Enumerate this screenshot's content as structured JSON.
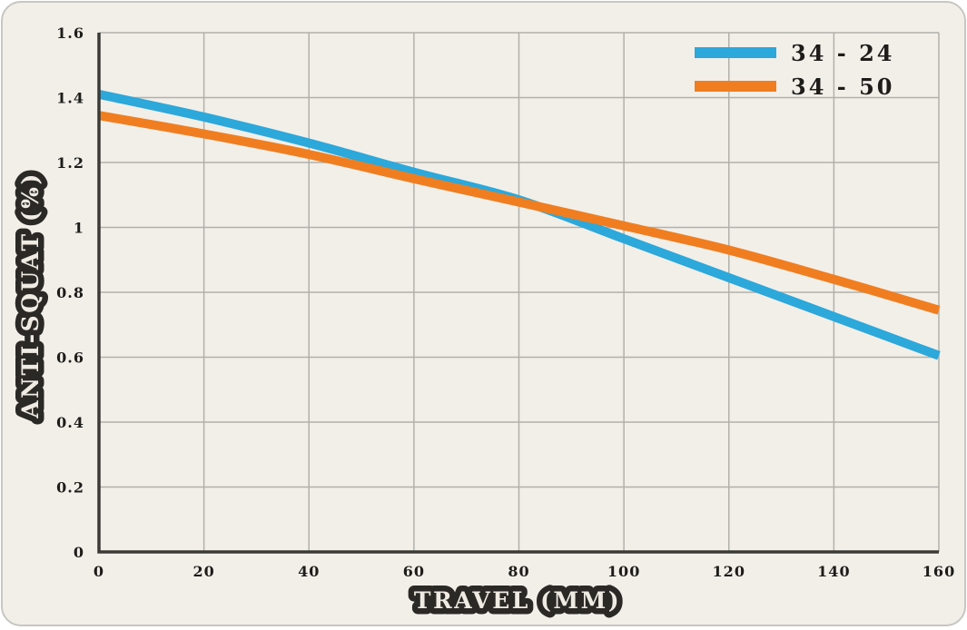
{
  "chart": {
    "colors": {
      "background": "#f2efe9",
      "outer_background": "#ffffff",
      "card_border": "#c8c6c1",
      "grid": "#b2b0ab",
      "axis": "#3b3a36",
      "tick_text": "#1d1c19",
      "title_fill": "#efebe3",
      "title_outline": "#2a2925"
    },
    "chart_data": {
      "type": "line",
      "title": "",
      "xlabel": "TRAVEL (MM)",
      "ylabel": "ANTI-SQUAT (%)",
      "xlim": [
        0,
        160
      ],
      "ylim": [
        0,
        1.6
      ],
      "grid": true,
      "legend_position": "top-right",
      "x_ticks": [
        0,
        20,
        40,
        60,
        80,
        100,
        120,
        140,
        160
      ],
      "x_tick_labels": [
        "0",
        "20",
        "40",
        "60",
        "80",
        "100",
        "120",
        "140",
        "160"
      ],
      "y_ticks": [
        0,
        0.2,
        0.4,
        0.6,
        0.8,
        1,
        1.2,
        1.4,
        1.6
      ],
      "y_tick_labels": [
        "0",
        "0.2",
        "0.4",
        "0.6",
        "0.8",
        "1",
        "1.2",
        "1.4",
        "1.6"
      ],
      "x": [
        0,
        20,
        40,
        60,
        80,
        100,
        120,
        140,
        160
      ],
      "series": [
        {
          "name": "34 - 24",
          "color": "#2ca8db",
          "values": [
            1.41,
            1.34,
            1.26,
            1.17,
            1.085,
            0.965,
            0.845,
            0.725,
            0.605
          ]
        },
        {
          "name": "34 - 50",
          "color": "#f07e20",
          "values": [
            1.345,
            1.288,
            1.225,
            1.15,
            1.078,
            1.005,
            0.93,
            0.84,
            0.745
          ]
        }
      ]
    }
  }
}
